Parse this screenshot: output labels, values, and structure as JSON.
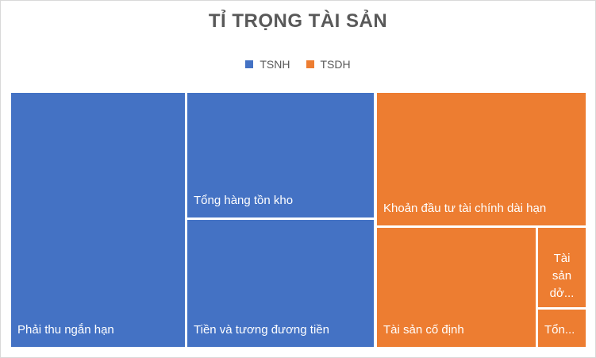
{
  "chart_data": {
    "type": "treemap",
    "title": "TỈ TRỌNG TÀI SẢN",
    "legend_position": "top",
    "series": [
      {
        "name": "TSNH",
        "color": "#4472c4"
      },
      {
        "name": "TSDH",
        "color": "#ed7d31"
      }
    ],
    "items": [
      {
        "group": "TSNH",
        "label": "Phải thu ngắn hạn"
      },
      {
        "group": "TSNH",
        "label": "Tổng hàng tồn kho"
      },
      {
        "group": "TSNH",
        "label": "Tiền và tương đương tiền"
      },
      {
        "group": "TSDH",
        "label": "Khoản đầu tư tài chính dài hạn"
      },
      {
        "group": "TSDH",
        "label": "Tài sản cố định"
      },
      {
        "group": "TSDH",
        "label": "Tài\nsản\ndở..."
      },
      {
        "group": "TSDH",
        "label": "Tổn..."
      }
    ]
  }
}
